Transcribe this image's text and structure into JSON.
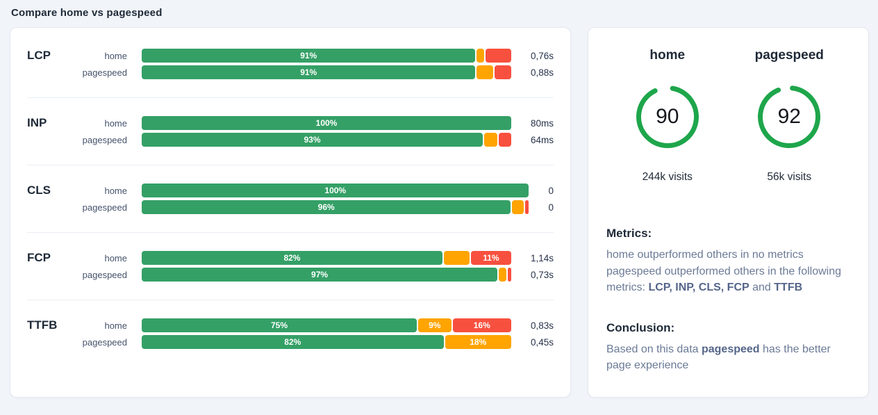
{
  "title": "Compare home vs pagespeed",
  "colors": {
    "good": "#34a066",
    "needs_improvement": "#ffa400",
    "poor": "#f8503f",
    "ring": "#1ea64b"
  },
  "chart_data": [
    {
      "type": "bar",
      "subtype": "horizontal-stacked-percent",
      "title": "Compare home vs pagespeed",
      "segment_order": [
        "good",
        "needs_improvement",
        "poor"
      ],
      "xlim": [
        0,
        100
      ],
      "legend": "none",
      "groups": [
        {
          "metric": "LCP",
          "rows": [
            {
              "site": "home",
              "good": 91,
              "needs_improvement": 2,
              "poor": 7,
              "labels": {
                "good": "91%"
              },
              "value": "0,76s"
            },
            {
              "site": "pagespeed",
              "good": 91,
              "needs_improvement": 4.5,
              "poor": 4.5,
              "labels": {
                "good": "91%"
              },
              "value": "0,88s"
            }
          ]
        },
        {
          "metric": "INP",
          "rows": [
            {
              "site": "home",
              "good": 100,
              "needs_improvement": 0,
              "poor": 0,
              "labels": {
                "good": "100%"
              },
              "value": "80ms"
            },
            {
              "site": "pagespeed",
              "good": 93,
              "needs_improvement": 3.5,
              "poor": 3.5,
              "labels": {
                "good": "93%"
              },
              "value": "64ms"
            }
          ]
        },
        {
          "metric": "CLS",
          "rows": [
            {
              "site": "home",
              "good": 100,
              "needs_improvement": 0,
              "poor": 0,
              "labels": {
                "good": "100%"
              },
              "value": "0"
            },
            {
              "site": "pagespeed",
              "good": 96,
              "needs_improvement": 3,
              "poor": 1,
              "labels": {
                "good": "96%"
              },
              "value": "0"
            }
          ]
        },
        {
          "metric": "FCP",
          "rows": [
            {
              "site": "home",
              "good": 82,
              "needs_improvement": 7,
              "poor": 11,
              "labels": {
                "good": "82%",
                "poor": "11%"
              },
              "value": "1,14s"
            },
            {
              "site": "pagespeed",
              "good": 97,
              "needs_improvement": 2,
              "poor": 1,
              "labels": {
                "good": "97%"
              },
              "value": "0,73s"
            }
          ]
        },
        {
          "metric": "TTFB",
          "rows": [
            {
              "site": "home",
              "good": 75,
              "needs_improvement": 9,
              "poor": 16,
              "labels": {
                "good": "75%",
                "needs_improvement": "9%",
                "poor": "16%"
              },
              "value": "0,83s"
            },
            {
              "site": "pagespeed",
              "good": 82,
              "needs_improvement": 18,
              "poor": 0,
              "labels": {
                "good": "82%",
                "needs_improvement": "18%"
              },
              "value": "0,45s"
            }
          ]
        }
      ]
    },
    {
      "type": "gauge",
      "gauges": [
        {
          "label": "home",
          "score": 90,
          "max": 100,
          "visits": "244k visits"
        },
        {
          "label": "pagespeed",
          "score": 92,
          "max": 100,
          "visits": "56k visits"
        }
      ]
    }
  ],
  "summary": {
    "metrics_heading": "Metrics:",
    "metrics_line_home": "home outperformed others in no metrics",
    "metrics_line_pagespeed_prefix": "pagespeed outperformed others in the following metrics: ",
    "metrics_bold_list": "LCP, INP, CLS, FCP",
    "metrics_and": " and ",
    "metrics_bold_last": "TTFB",
    "conclusion_heading": "Conclusion:",
    "conclusion_prefix": "Based on this data ",
    "conclusion_bold": "pagespeed",
    "conclusion_suffix": " has the better page experience"
  }
}
